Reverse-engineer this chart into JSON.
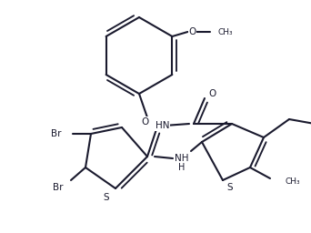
{
  "line_color": "#1a1a2e",
  "bg_color": "#ffffff",
  "lw": 1.5,
  "figsize": [
    3.42,
    2.56
  ],
  "dpi": 100,
  "xlim": [
    0,
    342
  ],
  "ylim": [
    0,
    256
  ]
}
